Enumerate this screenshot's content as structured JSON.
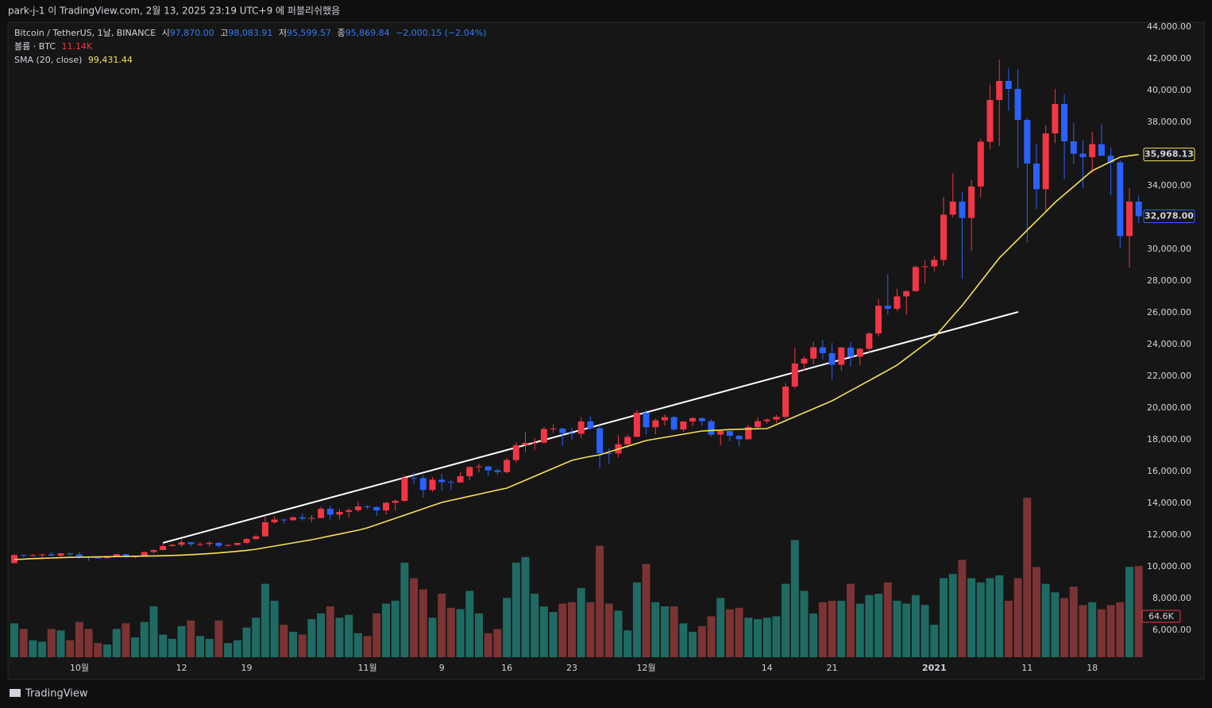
{
  "header": {
    "published": "park-j-1 이 TradingView.com, 2월 13, 2025 23:19 UTC+9 에 퍼블리쉬했음"
  },
  "footer": {
    "brand": "TradingView"
  },
  "chart_data": {
    "type": "candlestick",
    "legend": {
      "symbol": "Bitcoin / TetherUS, 1날, BINANCE",
      "o_label": "시",
      "o": "97,870.00",
      "h_label": "고",
      "h": "98,083.91",
      "l_label": "저",
      "l": "95,599.57",
      "c_label": "종",
      "c": "95,869.84",
      "change": "−2,000.15 (−2.04%)",
      "volume_label": "볼륨 · BTC",
      "volume": "11.14K",
      "sma_label": "SMA (20, close)",
      "sma": "99,431.44"
    },
    "categories": [
      null,
      null,
      null,
      null,
      null,
      null,
      null,
      "10월",
      null,
      null,
      null,
      null,
      null,
      null,
      null,
      null,
      null,
      null,
      "12",
      null,
      null,
      null,
      null,
      null,
      null,
      "19",
      null,
      null,
      null,
      null,
      null,
      null,
      null,
      null,
      null,
      null,
      null,
      null,
      "11월",
      null,
      null,
      null,
      null,
      null,
      null,
      null,
      "9",
      null,
      null,
      null,
      null,
      null,
      null,
      "16",
      null,
      null,
      null,
      null,
      null,
      null,
      "23",
      null,
      null,
      null,
      null,
      null,
      null,
      null,
      "12월",
      null,
      null,
      null,
      null,
      null,
      null,
      null,
      null,
      null,
      null,
      null,
      null,
      "14",
      null,
      null,
      null,
      null,
      null,
      null,
      "21",
      null,
      null,
      null,
      null,
      null,
      null,
      null,
      null,
      null,
      null,
      "2021",
      null,
      null,
      null,
      null,
      null,
      null,
      null,
      null,
      null,
      "11",
      null,
      null,
      null,
      null,
      null,
      null,
      "18",
      null,
      null,
      null,
      null,
      null
    ],
    "open": [
      10230,
      10740,
      10690,
      10730,
      10775,
      10700,
      10840,
      10775,
      10620,
      10570,
      10550,
      10670,
      10790,
      10600,
      10670,
      10925,
      11050,
      11300,
      11380,
      11540,
      11425,
      11430,
      11505,
      11320,
      11370,
      11500,
      11750,
      11915,
      12800,
      12970,
      12930,
      13110,
      13030,
      13070,
      13650,
      13280,
      13455,
      13560,
      13800,
      13760,
      13550,
      14030,
      14150,
      15590,
      15580,
      14840,
      15480,
      15330,
      15310,
      15700,
      16280,
      16320,
      16070,
      15960,
      16720,
      17660,
      17800,
      17820,
      18680,
      18700,
      18420,
      18370,
      19150,
      18720,
      17150,
      17140,
      17720,
      18180,
      19700,
      18790,
      19220,
      19420,
      18650,
      19150,
      19360,
      19170,
      18320,
      18550,
      18250,
      18030,
      18800,
      19170,
      19270,
      19440,
      21350,
      22800,
      23110,
      23820,
      23450,
      22720,
      23810,
      23230,
      23730,
      24690,
      26440,
      26250,
      27030,
      27360,
      28880,
      28920,
      29330,
      32180,
      33000,
      31970,
      33950,
      36770,
      39400,
      40600,
      40100,
      38150,
      35400,
      33780,
      37300,
      39150,
      36800,
      36020,
      35800,
      36620,
      35890,
      35470,
      30830,
      33000
    ],
    "high": [
      10780,
      10770,
      10790,
      10800,
      10960,
      10860,
      10850,
      10950,
      10660,
      10600,
      10690,
      10800,
      10800,
      10690,
      10950,
      11100,
      11490,
      11440,
      11720,
      11560,
      11550,
      11630,
      11540,
      11400,
      11490,
      11800,
      12000,
      13220,
      13190,
      13020,
      13160,
      13350,
      13250,
      13790,
      13860,
      13640,
      13690,
      14100,
      13900,
      13820,
      14070,
      14250,
      15750,
      15960,
      15770,
      15650,
      15850,
      15480,
      15960,
      16340,
      16480,
      16330,
      16180,
      16880,
      17860,
      18480,
      18110,
      18820,
      18970,
      18750,
      18770,
      19420,
      19480,
      18920,
      17460,
      18280,
      18340,
      19870,
      19890,
      19340,
      19600,
      19520,
      19170,
      19420,
      19390,
      19300,
      18640,
      18560,
      18290,
      18950,
      19410,
      19350,
      19570,
      21560,
      23800,
      23280,
      24170,
      24300,
      24100,
      23840,
      24150,
      23790,
      24790,
      26870,
      28420,
      27500,
      27410,
      28990,
      29300,
      29600,
      33300,
      34780,
      33600,
      34360,
      36940,
      40370,
      41950,
      41380,
      41350,
      38260,
      36620,
      37800,
      40100,
      39740,
      37950,
      36850,
      37400,
      37850,
      36420,
      35600,
      33830,
      33400
    ],
    "low": [
      10190,
      10600,
      10640,
      10560,
      10660,
      10640,
      10660,
      10530,
      10370,
      10500,
      10500,
      10630,
      10530,
      10540,
      10640,
      10830,
      11030,
      11280,
      11250,
      11280,
      11280,
      11250,
      11200,
      11260,
      11340,
      11410,
      11680,
      11900,
      12700,
      12720,
      12900,
      12900,
      12800,
      13050,
      12950,
      12980,
      13100,
      13420,
      13620,
      13200,
      13290,
      13530,
      14090,
      15190,
      14350,
      14710,
      14800,
      14830,
      15280,
      15440,
      15950,
      15710,
      15800,
      15870,
      16560,
      17210,
      17340,
      17750,
      18420,
      17610,
      18000,
      18080,
      18620,
      16200,
      16500,
      16880,
      17510,
      18170,
      18320,
      18330,
      18880,
      18570,
      18500,
      18860,
      18900,
      18200,
      17650,
      17910,
      17570,
      18020,
      18700,
      19000,
      19050,
      19300,
      21230,
      22350,
      22750,
      23060,
      21810,
      22350,
      22600,
      22700,
      23430,
      24500,
      25860,
      26100,
      25880,
      27320,
      27850,
      28620,
      28950,
      32000,
      28130,
      29900,
      33290,
      36300,
      36500,
      38720,
      35110,
      30420,
      32530,
      32390,
      36700,
      34410,
      35360,
      33850,
      34800,
      35900,
      33400,
      30070,
      28850,
      31650
    ],
    "close": [
      10740,
      10690,
      10730,
      10775,
      10700,
      10840,
      10775,
      10620,
      10570,
      10550,
      10670,
      10790,
      10600,
      10670,
      10925,
      11050,
      11300,
      11380,
      11540,
      11425,
      11430,
      11505,
      11320,
      11370,
      11500,
      11750,
      11915,
      12800,
      12970,
      12930,
      13110,
      13030,
      13070,
      13650,
      13280,
      13455,
      13560,
      13800,
      13760,
      13550,
      14030,
      14150,
      15590,
      15580,
      14840,
      15480,
      15330,
      15310,
      15700,
      16280,
      16320,
      16070,
      15960,
      16720,
      17660,
      17800,
      17820,
      18680,
      18700,
      18420,
      18370,
      19150,
      18720,
      17150,
      17140,
      17720,
      18180,
      19700,
      18790,
      19220,
      19420,
      18650,
      19150,
      19360,
      19170,
      18320,
      18550,
      18250,
      18030,
      18800,
      19170,
      19270,
      19440,
      21350,
      22800,
      23110,
      23820,
      23450,
      22720,
      23810,
      23230,
      23730,
      24690,
      26440,
      26250,
      27030,
      27360,
      28880,
      28920,
      29330,
      32180,
      33000,
      31970,
      33950,
      36770,
      39400,
      40600,
      40100,
      38150,
      35400,
      33780,
      37300,
      39150,
      36800,
      36020,
      35800,
      36620,
      35890,
      35470,
      30830,
      33000,
      32078
    ],
    "up_color": "#f23645",
    "down_color": "#2962ff",
    "volume": {
      "values": [
        24,
        20,
        12,
        11,
        20,
        19,
        12,
        25,
        20,
        10,
        9,
        20,
        24,
        14,
        25,
        36,
        16,
        13,
        22,
        26,
        15,
        13,
        26,
        10,
        12,
        21,
        28,
        52,
        40,
        23,
        18,
        16,
        27,
        31,
        36,
        28,
        30,
        17,
        15,
        31,
        38,
        40,
        67,
        56,
        48,
        28,
        45,
        35,
        34,
        47,
        31,
        17,
        20,
        42,
        67,
        71,
        45,
        36,
        32,
        38,
        39,
        49,
        39,
        79,
        38,
        33,
        19,
        53,
        66,
        39,
        36,
        36,
        24,
        18,
        22,
        29,
        42,
        34,
        35,
        28,
        27,
        28,
        29,
        52,
        83,
        47,
        31,
        39,
        40,
        40,
        52,
        38,
        44,
        45,
        53,
        40,
        38,
        44,
        37,
        23,
        56,
        59,
        69,
        56,
        53,
        56,
        58,
        40,
        56,
        113,
        64,
        52,
        46,
        42,
        50,
        37,
        39,
        34,
        37,
        39,
        64,
        64.6
      ],
      "up_color": "#1f6b63",
      "down_color": "#7b3333"
    },
    "volume_tag": "64.6K",
    "sma": {
      "color": "#f7e15a",
      "values": [
        10450,
        10480,
        10510,
        10530,
        10550,
        10570,
        10590,
        10600,
        10610,
        10620,
        10630,
        10640,
        10650,
        10660,
        10670,
        10680,
        10690,
        10710,
        10730,
        10760,
        10790,
        10830,
        10870,
        10920,
        10970,
        11030,
        11100,
        11200,
        11300,
        11400,
        11500,
        11600,
        11700,
        11820,
        11940,
        12060,
        12180,
        12300,
        12450,
        12650,
        12850,
        13050,
        13250,
        13450,
        13650,
        13850,
        14050,
        14180,
        14310,
        14440,
        14570,
        14700,
        14830,
        14950,
        15200,
        15450,
        15700,
        15950,
        16200,
        16450,
        16700,
        16830,
        16950,
        17050,
        17230,
        17410,
        17590,
        17770,
        17950,
        18050,
        18150,
        18250,
        18350,
        18450,
        18550,
        18580,
        18610,
        18640,
        18660,
        18680,
        18690,
        18700,
        18950,
        19200,
        19450,
        19700,
        19950,
        20200,
        20450,
        20770,
        21090,
        21410,
        21730,
        22050,
        22370,
        22700,
        23140,
        23580,
        24020,
        24450,
        25120,
        25790,
        26450,
        27200,
        27950,
        28700,
        29450,
        30030,
        30610,
        31200,
        31780,
        32360,
        32950,
        33450,
        33950,
        34450,
        34950,
        35230,
        35520,
        35800,
        35890,
        35968.13
      ]
    },
    "price_tags": [
      {
        "value": 35968.13,
        "label": "35,968.13",
        "color": "#f7e15a"
      },
      {
        "value": 32078,
        "label": "32,078.00",
        "color": "#2962ff"
      }
    ],
    "ylim": [
      4300,
      44300
    ],
    "yticks": [
      {
        "value": 6000,
        "label": "6,000.00"
      },
      {
        "value": 8000,
        "label": "8,000.00"
      },
      {
        "value": 10000,
        "label": "10,000.00"
      },
      {
        "value": 12000,
        "label": "12,000.00"
      },
      {
        "value": 14000,
        "label": "14,000.00"
      },
      {
        "value": 16000,
        "label": "16,000.00"
      },
      {
        "value": 18000,
        "label": "18,000.00"
      },
      {
        "value": 20000,
        "label": "20,000.00"
      },
      {
        "value": 22000,
        "label": "22,000.00"
      },
      {
        "value": 24000,
        "label": "24,000.00"
      },
      {
        "value": 26000,
        "label": "26,000.00"
      },
      {
        "value": 28000,
        "label": "28,000.00"
      },
      {
        "value": 30000,
        "label": "30,000.00"
      },
      {
        "value": 32000,
        "label": "32,000.00"
      },
      {
        "value": 34000,
        "label": "34,000.00"
      },
      {
        "value": 36000,
        "label": "36,000.00"
      },
      {
        "value": 38000,
        "label": "38,000.00"
      },
      {
        "value": 40000,
        "label": "40,000.00"
      },
      {
        "value": 42000,
        "label": "42,000.00"
      },
      {
        "value": 44000,
        "label": "44,000.00"
      }
    ],
    "y2lim": [
      0,
      450
    ],
    "grid": false
  }
}
